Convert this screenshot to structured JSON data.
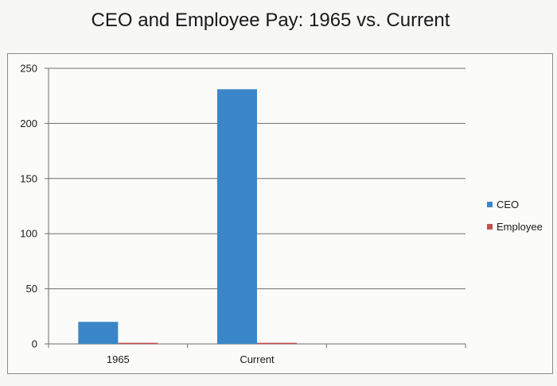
{
  "chart_data": {
    "type": "bar",
    "title": "CEO and Employee Pay: 1965 vs. Current",
    "categories": [
      "1965",
      "Current"
    ],
    "series": [
      {
        "name": "CEO",
        "values": [
          20,
          231
        ],
        "color": "#3a86c8"
      },
      {
        "name": "Employee",
        "values": [
          1,
          1
        ],
        "color": "#c0504d"
      }
    ],
    "ylim": [
      0,
      250
    ],
    "yticks": [
      0,
      50,
      100,
      150,
      200,
      250
    ],
    "grid": true,
    "legend": "right"
  }
}
